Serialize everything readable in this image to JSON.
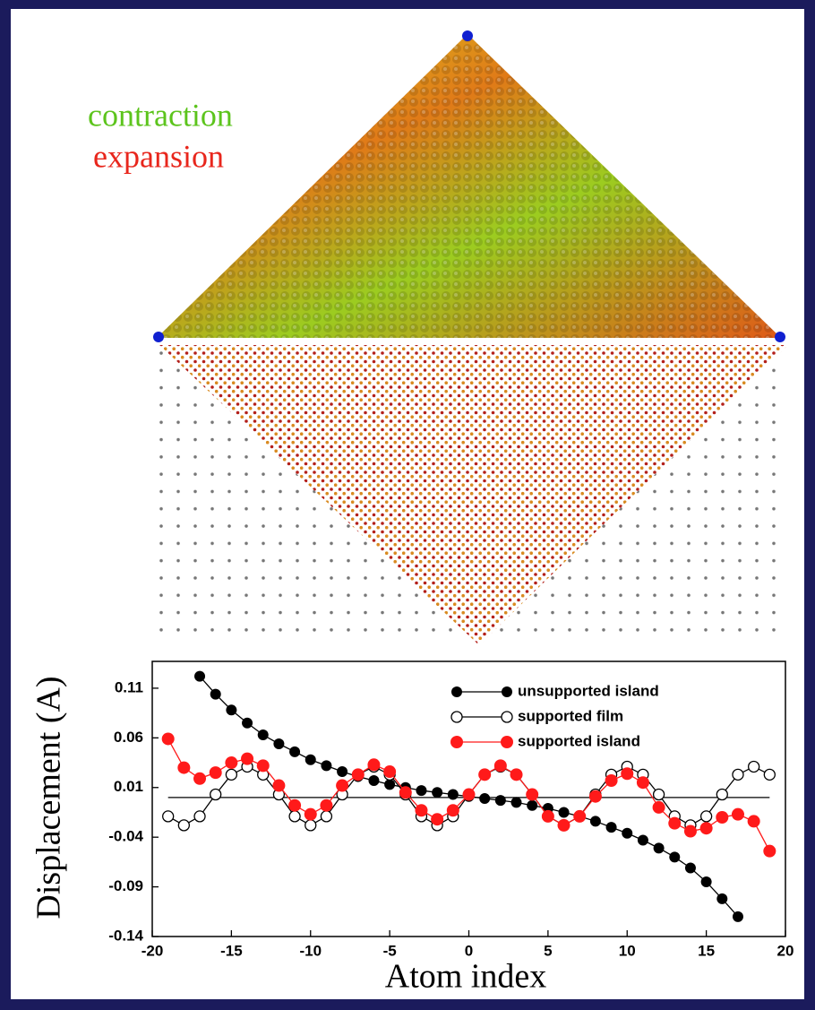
{
  "chart_data": {
    "type": "line",
    "labels": [
      "contraction",
      "expansion"
    ],
    "label_colors": [
      "#5cc41c",
      "#e8261c"
    ],
    "x_label": "Atom index",
    "y_label": "Displacement (A)",
    "xlim": [
      -20,
      20
    ],
    "xticks": [
      -20,
      -15,
      -10,
      -5,
      0,
      5,
      10,
      15,
      20
    ],
    "ylim": [
      -0.14,
      0.137
    ],
    "yticks": [
      -0.14,
      -0.09,
      -0.04,
      0.01,
      0.06,
      0.11
    ],
    "reference_line": 0,
    "series": [
      {
        "name": "unsupported island",
        "color": "#000000",
        "marker": "filled",
        "x": [
          -17,
          -16,
          -15,
          -14,
          -13,
          -12,
          -11,
          -10,
          -9,
          -8,
          -7,
          -6,
          -5,
          -4,
          -3,
          -2,
          -1,
          0,
          1,
          2,
          3,
          4,
          5,
          6,
          7,
          8,
          9,
          10,
          11,
          12,
          13,
          14,
          15,
          16,
          17
        ],
        "values": [
          0.122,
          0.104,
          0.088,
          0.075,
          0.063,
          0.054,
          0.046,
          0.038,
          0.032,
          0.026,
          0.021,
          0.017,
          0.013,
          0.01,
          0.007,
          0.005,
          0.003,
          0.001,
          -0.001,
          -0.003,
          -0.005,
          -0.008,
          -0.011,
          -0.015,
          -0.019,
          -0.024,
          -0.03,
          -0.036,
          -0.043,
          -0.051,
          -0.06,
          -0.071,
          -0.085,
          -0.102,
          -0.12
        ]
      },
      {
        "name": "supported film",
        "color": "#000000",
        "marker": "open",
        "x": [
          -19,
          -18,
          -17,
          -16,
          -15,
          -14,
          -13,
          -12,
          -11,
          -10,
          -9,
          -8,
          -7,
          -6,
          -5,
          -4,
          -3,
          -2,
          -1,
          0,
          1,
          2,
          3,
          4,
          5,
          6,
          7,
          8,
          9,
          10,
          11,
          12,
          13,
          14,
          15,
          16,
          17,
          18,
          19
        ],
        "values": [
          -0.019,
          -0.028,
          -0.019,
          0.003,
          0.023,
          0.031,
          0.023,
          0.003,
          -0.019,
          -0.028,
          -0.019,
          0.003,
          0.023,
          0.031,
          0.023,
          0.003,
          -0.019,
          -0.028,
          -0.019,
          0.003,
          0.023,
          0.031,
          0.023,
          0.003,
          -0.019,
          -0.028,
          -0.019,
          0.003,
          0.023,
          0.031,
          0.023,
          0.003,
          -0.019,
          -0.028,
          -0.019,
          0.003,
          0.023,
          0.031,
          0.023
        ]
      },
      {
        "name": "supported island",
        "color": "#ff1a1a",
        "marker": "filled",
        "x": [
          -19,
          -18,
          -17,
          -16,
          -15,
          -14,
          -13,
          -12,
          -11,
          -10,
          -9,
          -8,
          -7,
          -6,
          -5,
          -4,
          -3,
          -2,
          -1,
          0,
          1,
          2,
          3,
          4,
          5,
          6,
          7,
          8,
          9,
          10,
          11,
          12,
          13,
          14,
          15,
          16,
          17,
          18,
          19
        ],
        "values": [
          0.059,
          0.03,
          0.019,
          0.025,
          0.035,
          0.039,
          0.032,
          0.012,
          -0.008,
          -0.017,
          -0.008,
          0.012,
          0.023,
          0.033,
          0.026,
          0.005,
          -0.013,
          -0.022,
          -0.013,
          0.003,
          0.023,
          0.032,
          0.023,
          0.003,
          -0.019,
          -0.028,
          -0.019,
          0.001,
          0.017,
          0.024,
          0.015,
          -0.01,
          -0.026,
          -0.034,
          -0.031,
          -0.02,
          -0.017,
          -0.024,
          -0.054
        ]
      }
    ]
  }
}
